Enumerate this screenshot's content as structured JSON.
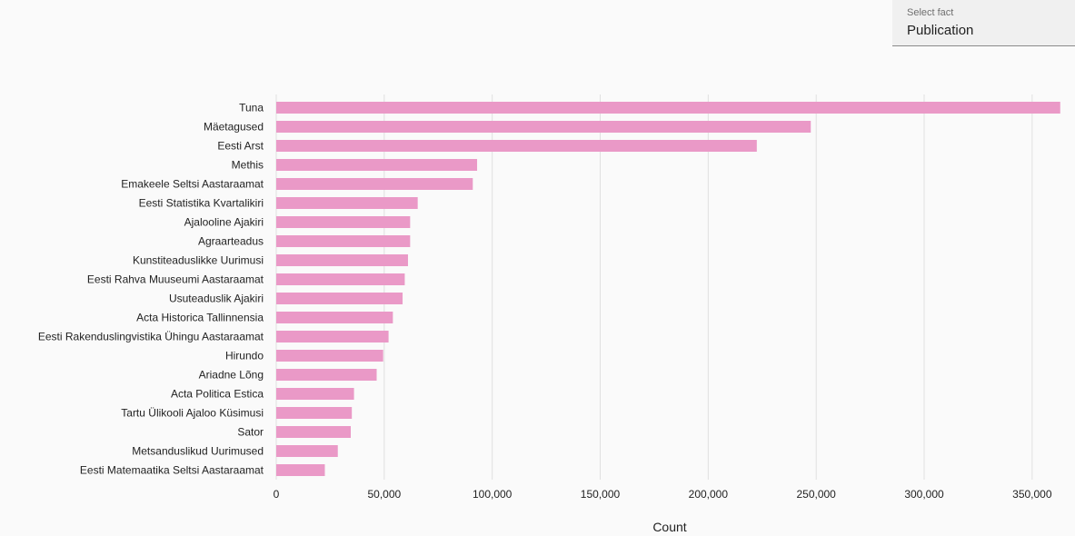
{
  "selector": {
    "label": "Select fact",
    "value": "Publication"
  },
  "colors": {
    "bar": "#ea99c7",
    "grid": "#e0e0e0",
    "text": "#222222"
  },
  "chart_data": {
    "type": "bar",
    "orientation": "horizontal",
    "categories": [
      "Tuna",
      "Mäetagused",
      "Eesti Arst",
      "Methis",
      "Emakeele Seltsi Aastaraamat",
      "Eesti Statistika Kvartalikiri",
      "Ajalooline Ajakiri",
      "Agraarteadus",
      "Kunstiteaduslikke Uurimusi",
      "Eesti Rahva Muuseumi Aastaraamat",
      "Usuteaduslik Ajakiri",
      "Acta Historica Tallinnensia",
      "Eesti Rakenduslingvistika Ühingu Aastaraamat",
      "Hirundo",
      "Ariadne Lõng",
      "Acta Politica Estica",
      "Tartu Ülikooli Ajaloo Küsimusi",
      "Sator",
      "Metsanduslikud Uurimused",
      "Eesti Matemaatika Seltsi Aastaraamat"
    ],
    "values": [
      363000,
      247500,
      222500,
      93000,
      91000,
      65500,
      62000,
      62000,
      61000,
      59500,
      58500,
      54000,
      52000,
      49500,
      46500,
      36000,
      35000,
      34500,
      28500,
      22500
    ],
    "xlabel": "Count",
    "ylabel": "",
    "xlim": [
      0,
      365000
    ],
    "xticks": [
      0,
      50000,
      100000,
      150000,
      200000,
      250000,
      300000,
      350000
    ],
    "xtick_labels": [
      "0",
      "50,000",
      "100,000",
      "150,000",
      "200,000",
      "250,000",
      "300,000",
      "350,000"
    ],
    "grid": true,
    "legend": "none"
  }
}
